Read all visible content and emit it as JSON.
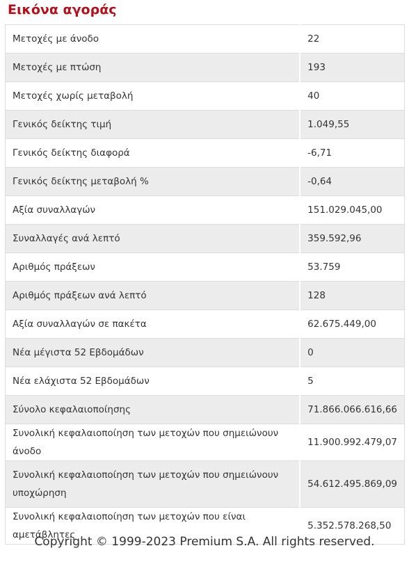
{
  "header": {
    "title": "Εικόνα αγοράς"
  },
  "table": {
    "rows": [
      [
        "Μετοχές με άνοδο",
        "22"
      ],
      [
        "Μετοχές με πτώση",
        "193"
      ],
      [
        "Μετοχές χωρίς μεταβολή",
        "40"
      ],
      [
        "Γενικός δείκτης τιμή",
        "1.049,55"
      ],
      [
        "Γενικός δείκτης διαφορά",
        "-6,71"
      ],
      [
        "Γενικός δείκτης μεταβολή %",
        "-0,64"
      ],
      [
        "Αξία συναλλαγών",
        "151.029.045,00"
      ],
      [
        "Συναλλαγές ανά λεπτό",
        "359.592,96"
      ],
      [
        "Αριθμός πράξεων",
        "53.759"
      ],
      [
        "Αριθμός πράξεων ανά λεπτό",
        "128"
      ],
      [
        "Αξία συναλλαγών σε πακέτα",
        "62.675.449,00"
      ],
      [
        "Νέα μέγιστα 52 Εβδομάδων",
        "0"
      ],
      [
        "Νέα ελάχιστα 52 Εβδομάδων",
        "5"
      ],
      [
        "Σύνολο κεφαλαιοποίησης",
        "71.866.066.616,66"
      ],
      [
        "Συνολική κεφαλαιοποίηση των μετοχών που σημειώνουν άνοδο",
        "11.900.992.479,07"
      ],
      [
        "Συνολική κεφαλαιοποίηση των μετοχών που σημειώνουν υποχώρηση",
        "54.612.495.869,09"
      ],
      [
        "Συνολική κεφαλαιοποίηση των μετοχών που είναι αμετάβλητες",
        "5.352.578.268,50"
      ]
    ]
  },
  "footer": {
    "copyright": "Copyright © 1999-2023 Premium S.A. All rights reserved."
  }
}
